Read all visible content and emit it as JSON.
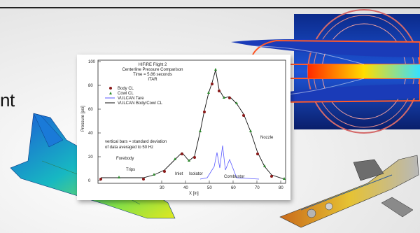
{
  "fragment_text": "nt",
  "plot": {
    "title_lines": [
      "HIFiRE Flight 2",
      "Centerline Pressure Comparison",
      "Time = 5.86 seconds",
      "ITAR"
    ],
    "ylabel": "Pressure [psi]",
    "xlabel": "X [in]",
    "legend": [
      "Body CL",
      "Cowl CL",
      "VULCAN Tare",
      "VULCAN Body/Cowl CL"
    ],
    "note_lines": [
      "vertical bars = standard deviation",
      "of data averaged to 50 Hz"
    ],
    "regions": [
      "Forebody",
      "Trips",
      "Inlet",
      "Isolator",
      "Combustor",
      "Nozzle"
    ],
    "x_ticks": [
      "30",
      "40",
      "50",
      "60",
      "70",
      "80"
    ],
    "y_ticks": [
      "100",
      "80",
      "60",
      "40",
      "20",
      "0"
    ]
  },
  "colors": {
    "body": "#8b1a1a",
    "cowl": "#2e8b2e",
    "tare": "#5a5aff",
    "cfd": "#111111"
  }
}
